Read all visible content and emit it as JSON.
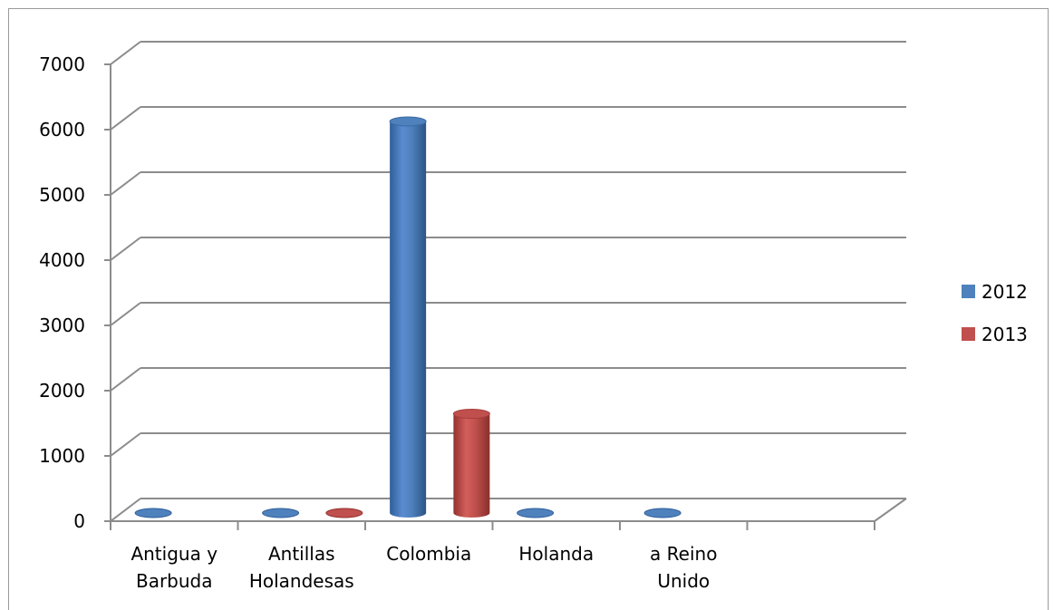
{
  "chart_data": {
    "type": "bar",
    "title": "",
    "xlabel": "",
    "ylabel": "",
    "ylim": [
      0,
      7000
    ],
    "yticks": [
      0,
      1000,
      2000,
      3000,
      4000,
      5000,
      6000,
      7000
    ],
    "grid": true,
    "legend_position": "right",
    "categories": [
      [
        "Antigua y",
        "Barbuda"
      ],
      [
        "Antillas",
        "Holandesas"
      ],
      [
        "Colombia"
      ],
      [
        "Holanda"
      ],
      [
        "a Reino",
        "Unido"
      ],
      []
    ],
    "series": [
      {
        "name": "2012",
        "color": "#4f81bd",
        "values": [
          10,
          10,
          6000,
          10,
          10,
          0
        ]
      },
      {
        "name": "2013",
        "color": "#c0504d",
        "values": [
          0,
          10,
          1520,
          0,
          0,
          0
        ]
      }
    ]
  }
}
